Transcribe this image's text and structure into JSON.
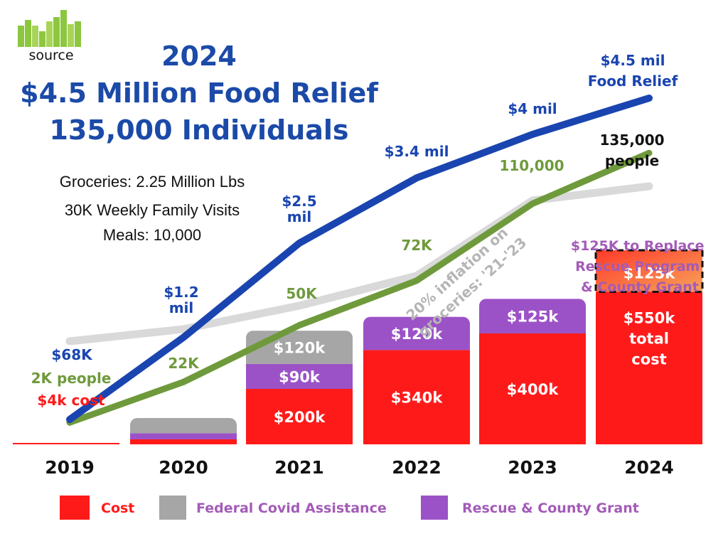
{
  "logo": {
    "text": "source",
    "colors": [
      "#8dc63f",
      "#6aa82f"
    ]
  },
  "title": {
    "line1": "2024",
    "line2": "$4.5 Million Food Relief",
    "line3": "135,000 Individuals"
  },
  "stats": [
    "Groceries: 2.25 Million Lbs",
    "30K Weekly Family Visits",
    "Meals: 10,000"
  ],
  "colors": {
    "cost": "#ff1a1a",
    "covid": "#a6a6a6",
    "rescue": "#9c52c7",
    "food_line": "#1a45b0",
    "people_line": "#6f9a3c",
    "inflation_line": "#d9d9d9",
    "projected_cost": "#f4784a"
  },
  "chart_data": {
    "type": "bar",
    "categories": [
      "2019",
      "2020",
      "2021",
      "2022",
      "2023",
      "2024"
    ],
    "stacked": true,
    "series": [
      {
        "name": "Cost",
        "values": [
          4,
          18,
          200,
          340,
          400,
          550
        ],
        "labels": [
          "",
          "",
          "$200k",
          "$340k",
          "$400k",
          "$550k total cost"
        ]
      },
      {
        "name": "Rescue & County Grant",
        "values": [
          0,
          22,
          90,
          120,
          125,
          125
        ],
        "labels": [
          "",
          "",
          "$90k",
          "$120k",
          "$125k",
          "$125k"
        ]
      },
      {
        "name": "Federal Covid Assistance",
        "values": [
          0,
          55,
          120,
          0,
          0,
          0
        ],
        "labels": [
          "",
          "",
          "$120k",
          "",
          "",
          ""
        ]
      }
    ],
    "lines": [
      {
        "name": "Food Relief",
        "values": [
          0.068,
          1.2,
          2.5,
          3.4,
          4.0,
          4.5
        ],
        "labels": [
          "$68K",
          "$1.2 mil",
          "$2.5 mil",
          "$3.4 mil",
          "$4 mil",
          "$4.5 mil Food Relief"
        ]
      },
      {
        "name": "People",
        "values": [
          2000,
          22000,
          50000,
          72000,
          110000,
          135000
        ],
        "labels": [
          "2K people",
          "22K",
          "50K",
          "72K",
          "110,000",
          "135,000 people"
        ]
      },
      {
        "name": "Inflation",
        "values": [
          null,
          null,
          null,
          null,
          null,
          null
        ]
      }
    ],
    "point_2019_cost_label": "$4k cost",
    "annotations": [
      "20% inflation on groceries: '21-'23",
      "$125K to Replace Rescue Program & County Grant"
    ],
    "legend": [
      "Cost",
      "Federal Covid Assistance",
      "Rescue & County Grant"
    ],
    "legend_position": "bottom"
  }
}
